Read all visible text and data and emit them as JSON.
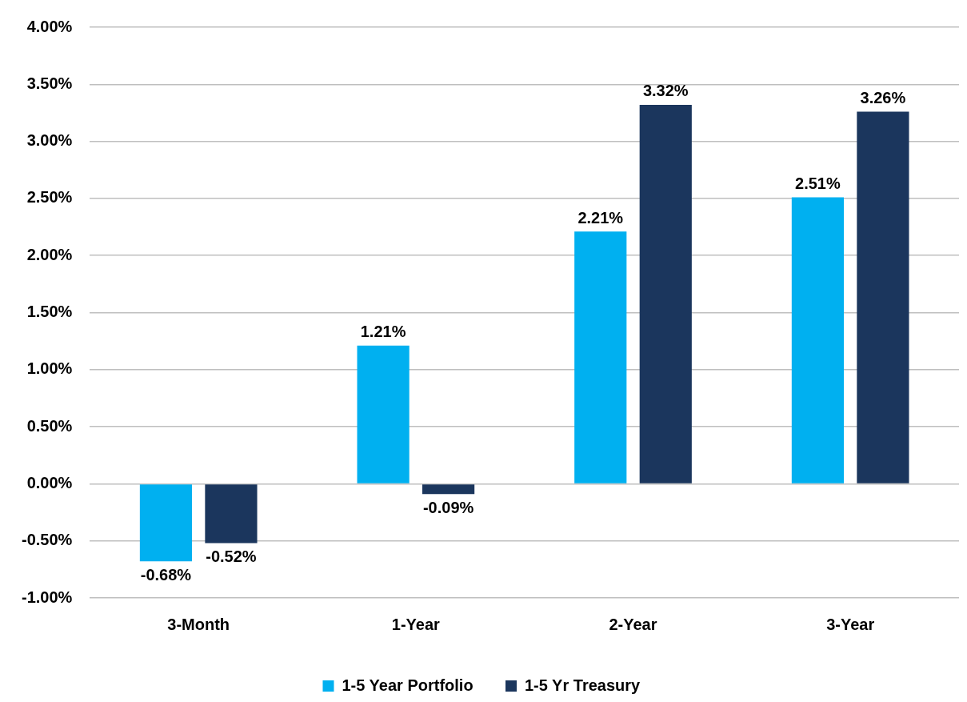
{
  "chart_data": {
    "type": "bar",
    "categories": [
      "3-Month",
      "1-Year",
      "2-Year",
      "3-Year"
    ],
    "series": [
      {
        "name": "1-5 Year Portfolio",
        "color": "#00b0f0",
        "values": [
          -0.68,
          1.21,
          2.21,
          2.51
        ],
        "value_labels": [
          "-0.68%",
          "1.21%",
          "2.21%",
          "2.51%"
        ]
      },
      {
        "name": "1-5 Yr Treasury",
        "color": "#1b365d",
        "values": [
          -0.52,
          -0.09,
          3.32,
          3.26
        ],
        "value_labels": [
          "-0.52%",
          "-0.09%",
          "3.32%",
          "3.26%"
        ]
      }
    ],
    "ylim": [
      -1,
      4
    ],
    "yticks": [
      {
        "value": -1,
        "label": "-1.00%"
      },
      {
        "value": -0.5,
        "label": "-0.50%"
      },
      {
        "value": 0,
        "label": "0.00%"
      },
      {
        "value": 0.5,
        "label": "0.50%"
      },
      {
        "value": 1,
        "label": "1.00%"
      },
      {
        "value": 1.5,
        "label": "1.50%"
      },
      {
        "value": 2,
        "label": "2.00%"
      },
      {
        "value": 2.5,
        "label": "2.50%"
      },
      {
        "value": 3,
        "label": "3.00%"
      },
      {
        "value": 3.5,
        "label": "3.50%"
      },
      {
        "value": 4,
        "label": "4.00%"
      }
    ],
    "grid": "y",
    "legend": "bottom"
  }
}
